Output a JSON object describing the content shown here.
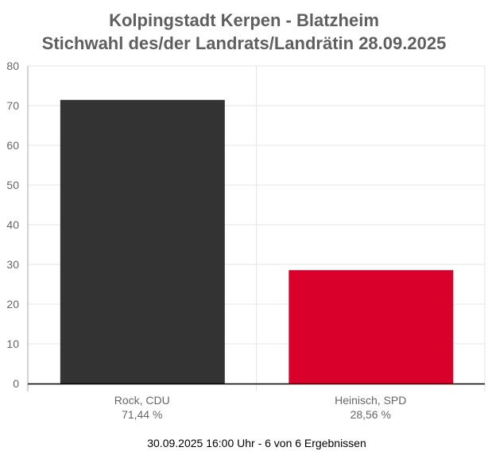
{
  "chart_data": {
    "type": "bar",
    "title": [
      "Kolpingstadt Kerpen - Blatzheim",
      "Stichwahl des/der Landrats/Landrätin 28.09.2025"
    ],
    "categories": [
      "Rock, CDU",
      "Heinisch, SPD"
    ],
    "value_labels": [
      "71,44 %",
      "28,56 %"
    ],
    "values": [
      71.44,
      28.56
    ],
    "colors": [
      "#333333",
      "#d9002b"
    ],
    "ylim": [
      0,
      80
    ],
    "yticks": [
      0,
      10,
      20,
      30,
      40,
      50,
      60,
      70,
      80
    ],
    "grid": true,
    "xlabel": "",
    "ylabel": "",
    "footer": "30.09.2025 16:00 Uhr - 6 von 6 Ergebnissen"
  }
}
